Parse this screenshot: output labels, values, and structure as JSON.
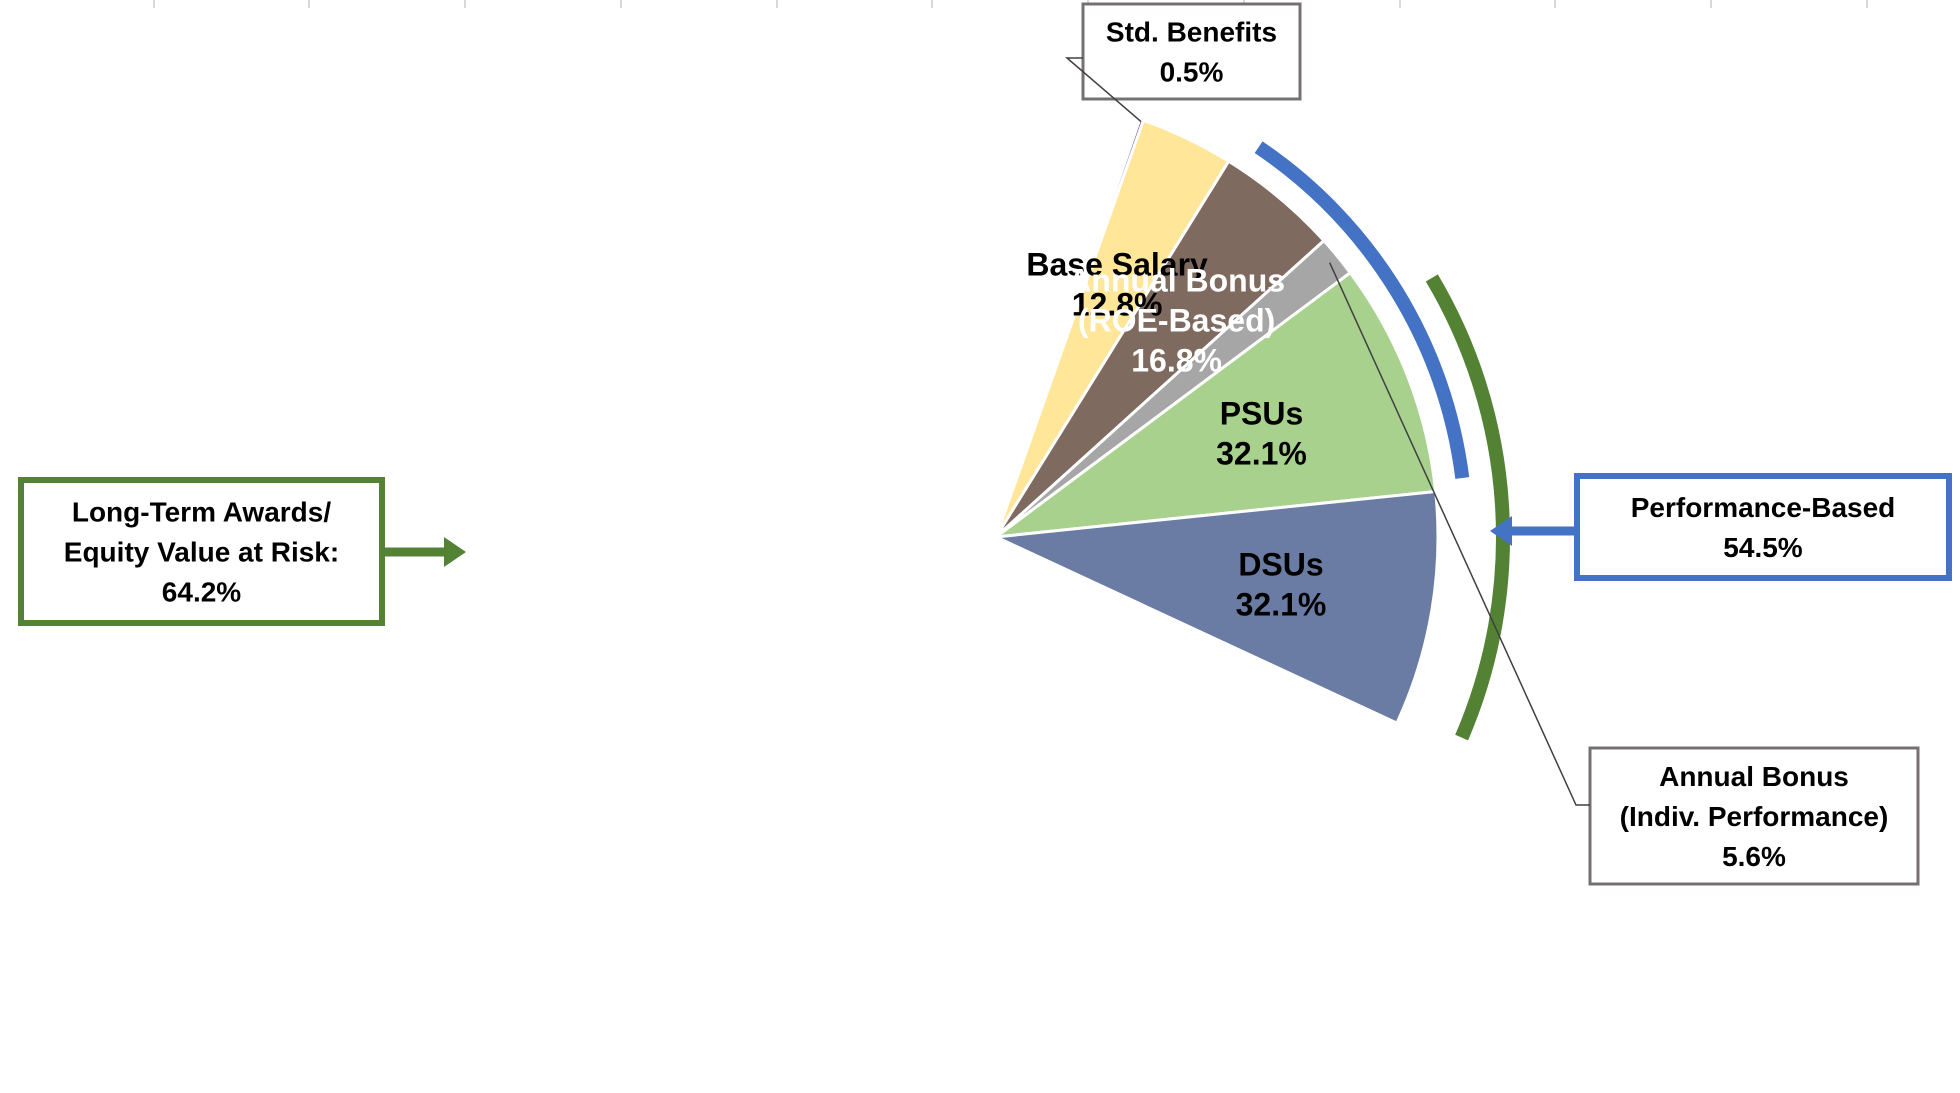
{
  "chart_data": {
    "type": "pie",
    "slices": [
      {
        "name": "Std. Benefits",
        "value": 0.5,
        "value_label": "0.5%",
        "color": "#7030A0"
      },
      {
        "name": "Base Salary",
        "value": 12.8,
        "value_label": "12.8%",
        "color": "#FFE699"
      },
      {
        "name": "Annual Bonus (ROE-Based)",
        "label_lines": [
          "Annual Bonus",
          "(ROE-Based)"
        ],
        "value": 16.8,
        "value_label": "16.8%",
        "color": "#7F6A60"
      },
      {
        "name": "Annual Bonus (Indiv. Performance)",
        "label_lines": [
          "Annual Bonus",
          "(Indiv. Performance)"
        ],
        "value": 5.6,
        "value_label": "5.6%",
        "color": "#A6A6A6"
      },
      {
        "name": "PSUs",
        "value": 32.1,
        "value_label": "32.1%",
        "color": "#A9D18E"
      },
      {
        "name": "DSUs",
        "value": 32.1,
        "value_label": "32.1%",
        "color": "#6A7CA3"
      }
    ],
    "groups": [
      {
        "name": "Performance-Based",
        "value": 54.5,
        "value_label": "54.5%",
        "color": "#4472C4",
        "members": [
          "Annual Bonus (ROE-Based)",
          "Annual Bonus (Indiv. Performance)",
          "PSUs"
        ]
      },
      {
        "name": "Long-Term Awards/ Equity Value at Risk:",
        "label_lines": [
          "Long-Term Awards/",
          "Equity Value at Risk:"
        ],
        "value": 64.2,
        "value_label": "64.2%",
        "color": "#548235",
        "members": [
          "PSUs",
          "DSUs"
        ]
      }
    ]
  }
}
